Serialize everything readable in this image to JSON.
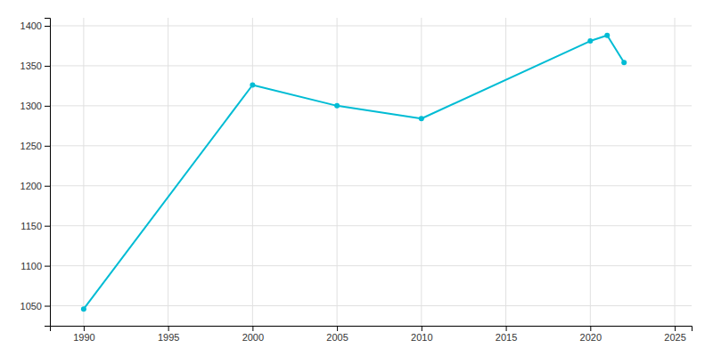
{
  "chart_data": {
    "type": "line",
    "x": [
      1990,
      2000,
      2005,
      2010,
      2020,
      2021,
      2022
    ],
    "values": [
      1046,
      1326,
      1300,
      1284,
      1381,
      1388,
      1354
    ],
    "color": "#00BCD4",
    "marker": "circle",
    "xlim": [
      1988,
      2026
    ],
    "ylim": [
      1025,
      1410
    ],
    "xticks": [
      1990,
      1995,
      2000,
      2005,
      2010,
      2015,
      2020,
      2025
    ],
    "yticks": [
      1050,
      1100,
      1150,
      1200,
      1250,
      1300,
      1350,
      1400
    ],
    "grid": true
  }
}
